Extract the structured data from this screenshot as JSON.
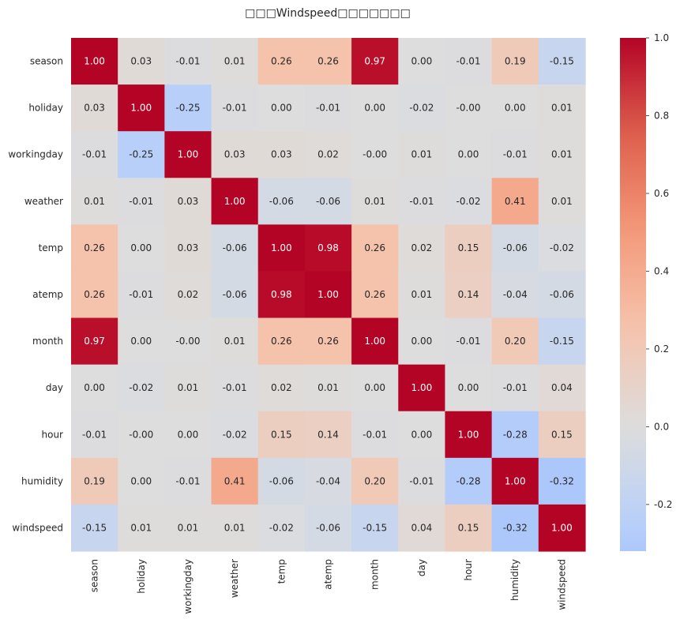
{
  "chart_data": {
    "type": "heatmap",
    "title": "□□□Windspeed□□□□□□□",
    "rows": [
      "season",
      "holiday",
      "workingday",
      "weather",
      "temp",
      "atemp",
      "month",
      "day",
      "hour",
      "humidity",
      "windspeed"
    ],
    "columns": [
      "season",
      "holiday",
      "workingday",
      "weather",
      "temp",
      "atemp",
      "month",
      "day",
      "hour",
      "humidity",
      "windspeed"
    ],
    "values": [
      [
        1.0,
        0.03,
        -0.01,
        0.01,
        0.26,
        0.26,
        0.97,
        0.0,
        -0.01,
        0.19,
        -0.15
      ],
      [
        0.03,
        1.0,
        -0.25,
        -0.01,
        0.0,
        -0.01,
        0.0,
        -0.02,
        -0.0,
        0.0,
        0.01
      ],
      [
        -0.01,
        -0.25,
        1.0,
        0.03,
        0.03,
        0.02,
        -0.0,
        0.01,
        0.0,
        -0.01,
        0.01
      ],
      [
        0.01,
        -0.01,
        0.03,
        1.0,
        -0.06,
        -0.06,
        0.01,
        -0.01,
        -0.02,
        0.41,
        0.01
      ],
      [
        0.26,
        0.0,
        0.03,
        -0.06,
        1.0,
        0.98,
        0.26,
        0.02,
        0.15,
        -0.06,
        -0.02
      ],
      [
        0.26,
        -0.01,
        0.02,
        -0.06,
        0.98,
        1.0,
        0.26,
        0.01,
        0.14,
        -0.04,
        -0.06
      ],
      [
        0.97,
        0.0,
        -0.0,
        0.01,
        0.26,
        0.26,
        1.0,
        0.0,
        -0.01,
        0.2,
        -0.15
      ],
      [
        0.0,
        -0.02,
        0.01,
        -0.01,
        0.02,
        0.01,
        0.0,
        1.0,
        0.0,
        -0.01,
        0.04
      ],
      [
        -0.01,
        -0.0,
        0.0,
        -0.02,
        0.15,
        0.14,
        -0.01,
        0.0,
        1.0,
        -0.28,
        0.15
      ],
      [
        0.19,
        0.0,
        -0.01,
        0.41,
        -0.06,
        -0.04,
        0.2,
        -0.01,
        -0.28,
        1.0,
        -0.32
      ],
      [
        -0.15,
        0.01,
        0.01,
        0.01,
        -0.02,
        -0.06,
        -0.15,
        0.04,
        0.15,
        -0.32,
        1.0
      ]
    ],
    "value_labels": [
      [
        "1.00",
        "0.03",
        "-0.01",
        "0.01",
        "0.26",
        "0.26",
        "0.97",
        "0.00",
        "-0.01",
        "0.19",
        "-0.15"
      ],
      [
        "0.03",
        "1.00",
        "-0.25",
        "-0.01",
        "0.00",
        "-0.01",
        "0.00",
        "-0.02",
        "-0.00",
        "0.00",
        "0.01"
      ],
      [
        "-0.01",
        "-0.25",
        "1.00",
        "0.03",
        "0.03",
        "0.02",
        "-0.00",
        "0.01",
        "0.00",
        "-0.01",
        "0.01"
      ],
      [
        "0.01",
        "-0.01",
        "0.03",
        "1.00",
        "-0.06",
        "-0.06",
        "0.01",
        "-0.01",
        "-0.02",
        "0.41",
        "0.01"
      ],
      [
        "0.26",
        "0.00",
        "0.03",
        "-0.06",
        "1.00",
        "0.98",
        "0.26",
        "0.02",
        "0.15",
        "-0.06",
        "-0.02"
      ],
      [
        "0.26",
        "-0.01",
        "0.02",
        "-0.06",
        "0.98",
        "1.00",
        "0.26",
        "0.01",
        "0.14",
        "-0.04",
        "-0.06"
      ],
      [
        "0.97",
        "0.00",
        "-0.00",
        "0.01",
        "0.26",
        "0.26",
        "1.00",
        "0.00",
        "-0.01",
        "0.20",
        "-0.15"
      ],
      [
        "0.00",
        "-0.02",
        "0.01",
        "-0.01",
        "0.02",
        "0.01",
        "0.00",
        "1.00",
        "0.00",
        "-0.01",
        "0.04"
      ],
      [
        "-0.01",
        "-0.00",
        "0.00",
        "-0.02",
        "0.15",
        "0.14",
        "-0.01",
        "0.00",
        "1.00",
        "-0.28",
        "0.15"
      ],
      [
        "0.19",
        "0.00",
        "-0.01",
        "0.41",
        "-0.06",
        "-0.04",
        "0.20",
        "-0.01",
        "-0.28",
        "1.00",
        "-0.32"
      ],
      [
        "-0.15",
        "0.01",
        "0.01",
        "0.01",
        "-0.02",
        "-0.06",
        "-0.15",
        "0.04",
        "0.15",
        "-0.32",
        "1.00"
      ]
    ],
    "colormap": "coolwarm",
    "color_range": [
      -0.32,
      1.0
    ],
    "colorbar": {
      "placement": "right",
      "ticks": [
        1.0,
        0.8,
        0.6,
        0.4,
        0.2,
        0.0,
        -0.2
      ],
      "tick_labels": [
        "1.0",
        "0.8",
        "0.6",
        "0.4",
        "0.2",
        "0.0",
        "-0.2"
      ]
    },
    "grid": false
  }
}
